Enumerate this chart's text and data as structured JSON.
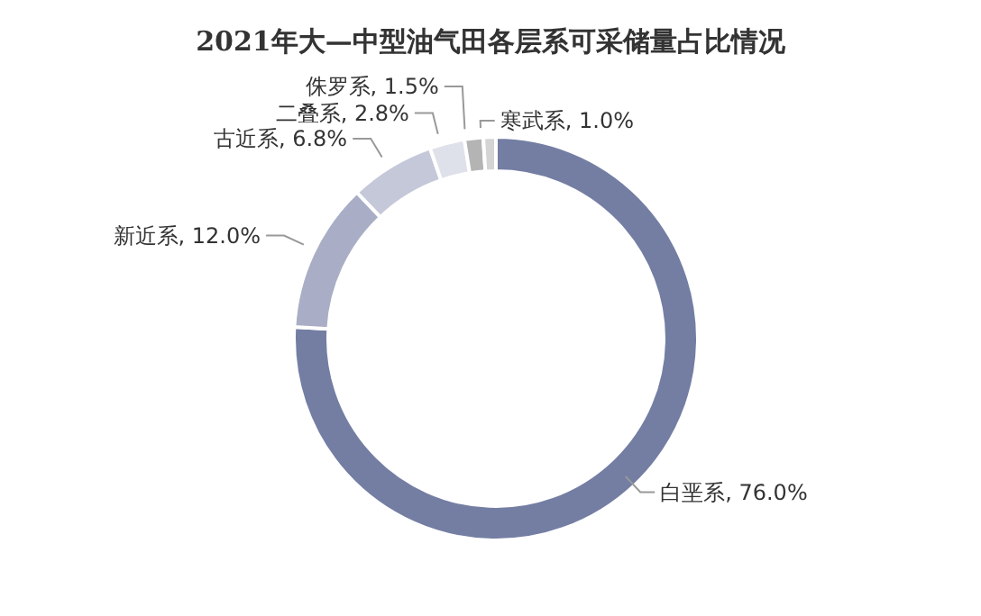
{
  "chart_data": {
    "type": "donut",
    "title": "2021年大—中型油气田各层系可采储量占比情况",
    "categories": [
      "白垩系",
      "新近系",
      "古近系",
      "二叠系",
      "侏罗系",
      "寒武系"
    ],
    "values": [
      76.0,
      12.0,
      6.8,
      2.8,
      1.5,
      1.0
    ],
    "colors": [
      "#747ea3",
      "#a9aec6",
      "#c5c8d9",
      "#dfe1ea",
      "#b4b4b4",
      "#d4d4d4"
    ],
    "value_labels": [
      "76.0%",
      "12.0%",
      "6.8%",
      "2.8%",
      "1.5%",
      "1.0%"
    ]
  }
}
